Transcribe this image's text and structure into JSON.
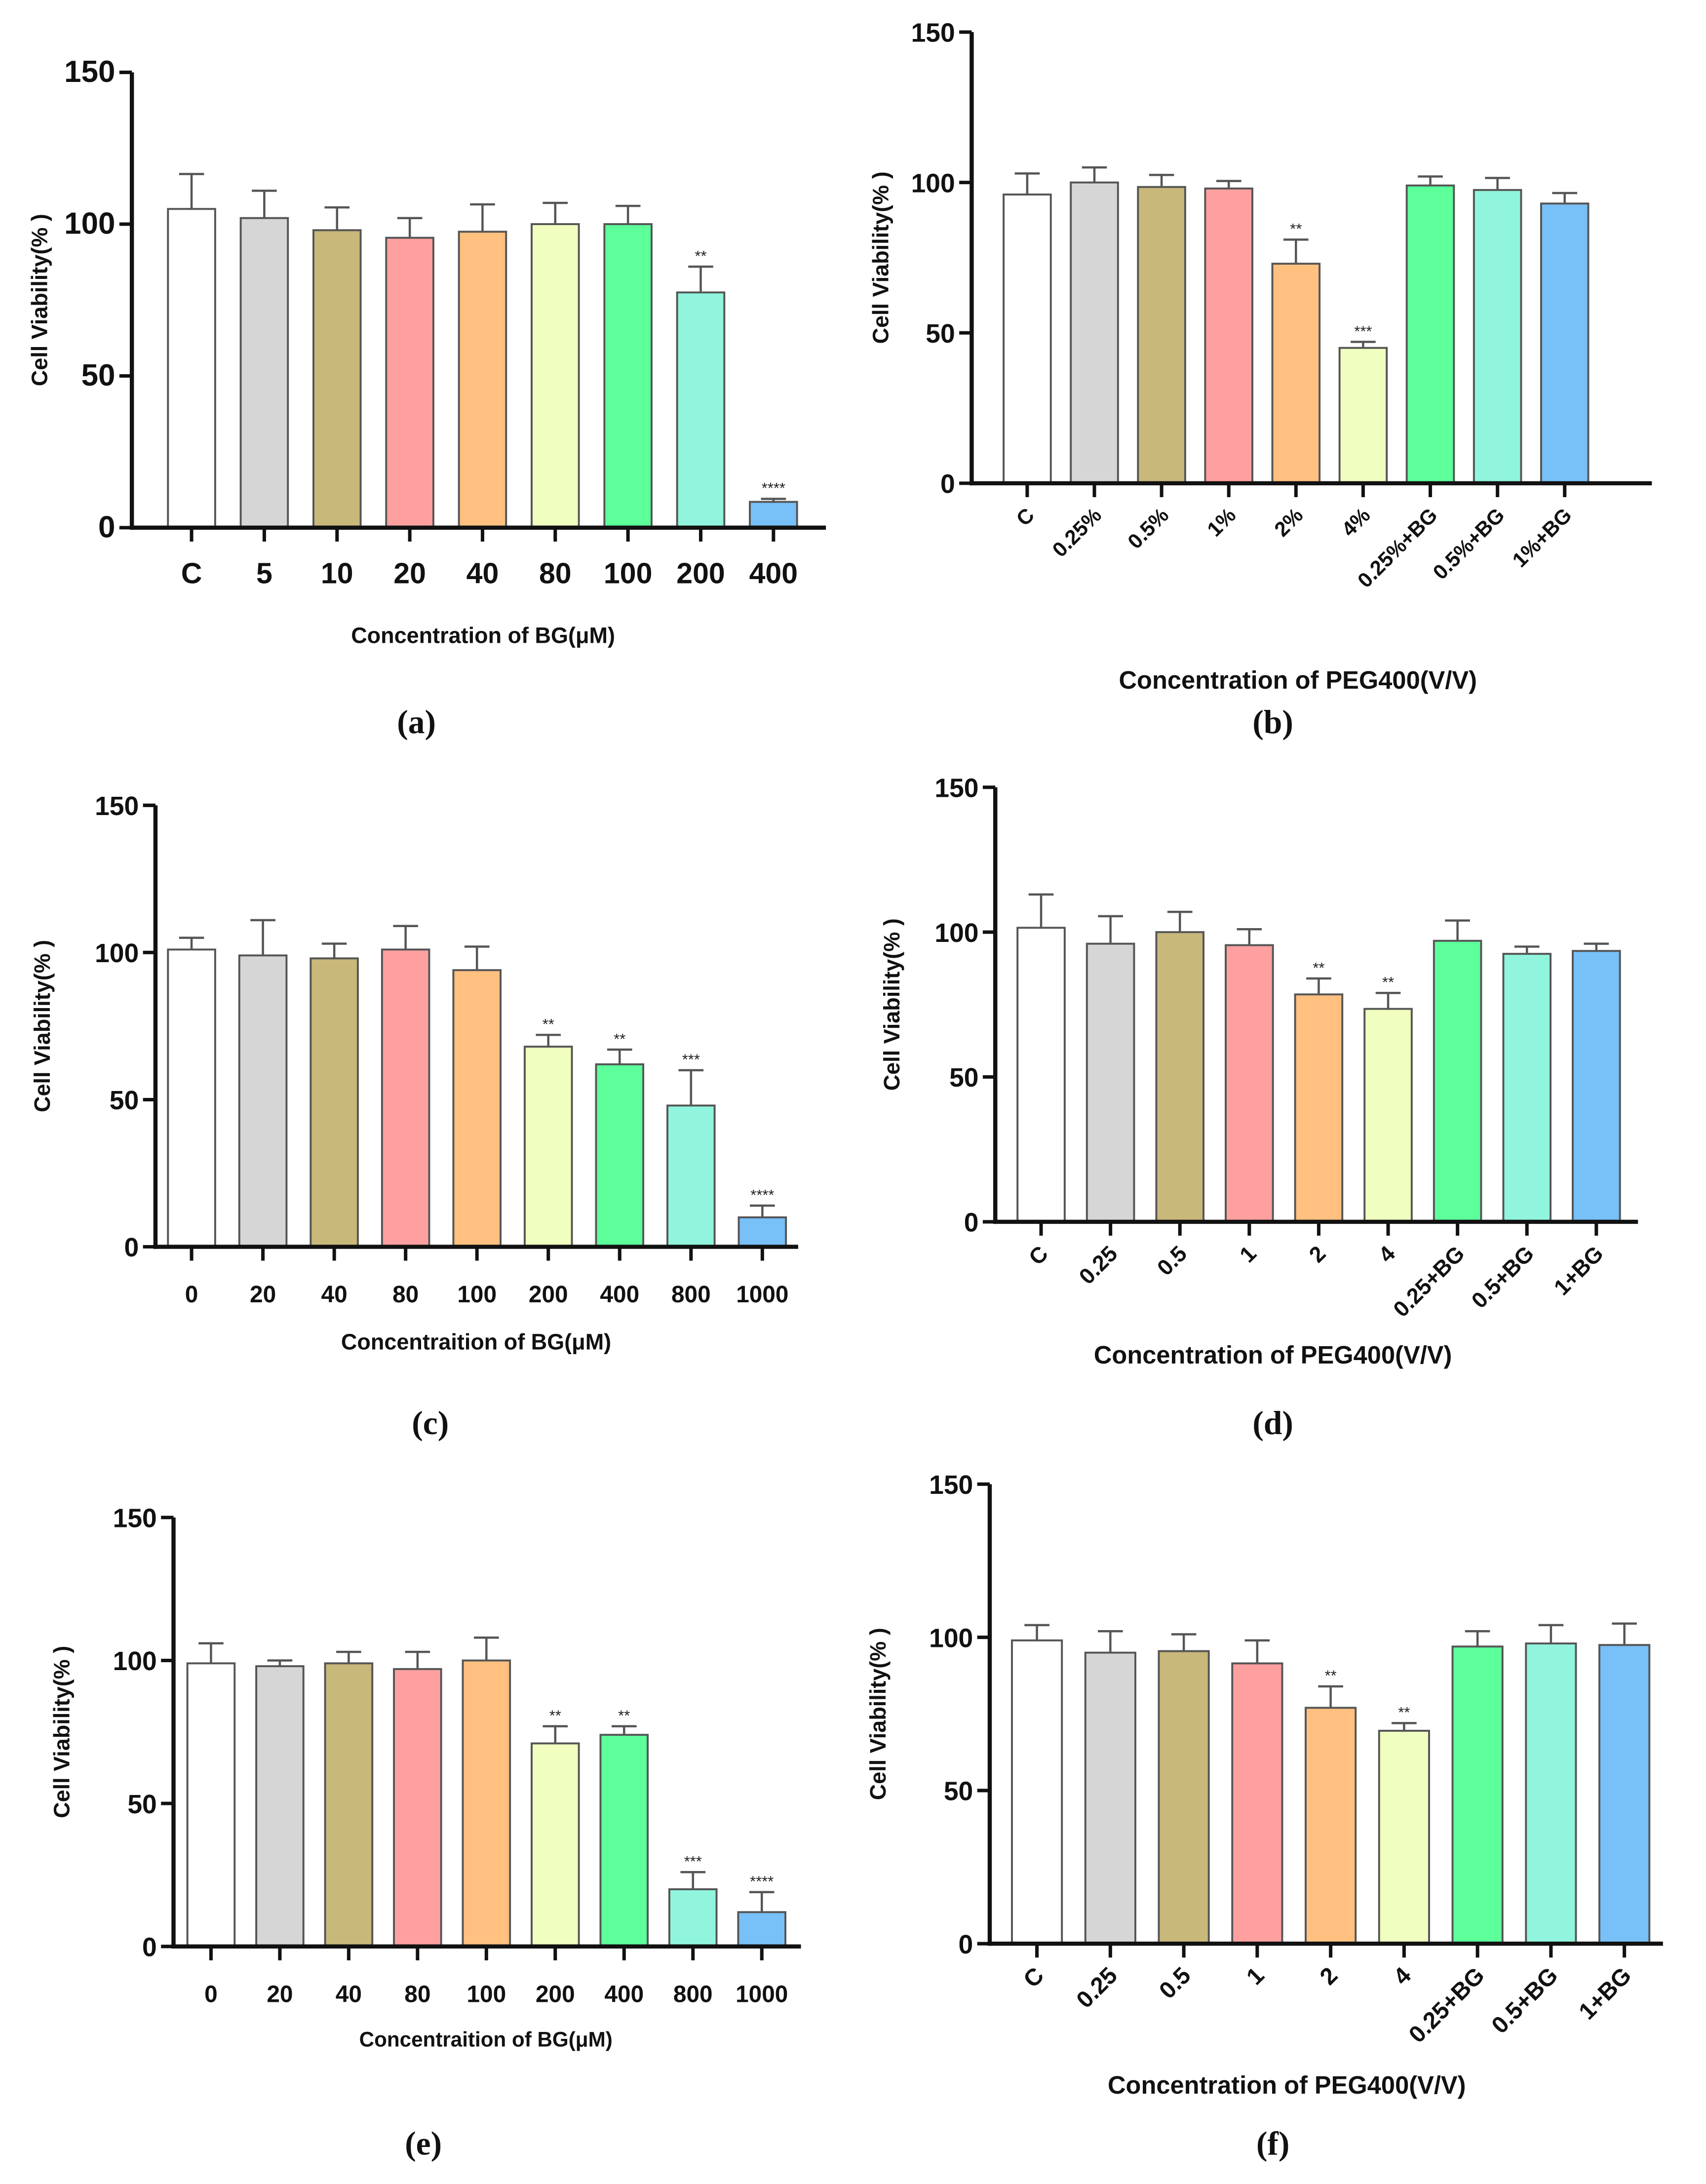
{
  "colors": [
    "#ffffff",
    "#d6d6d6",
    "#c8b87a",
    "#ffa0a0",
    "#ffc080",
    "#f0ffc0",
    "#5cff9a",
    "#90f5dc",
    "#78c0f8"
  ],
  "chart_data": [
    {
      "type": "bar",
      "panel": "(a)",
      "xlabel": "Concentration of BG(μM)",
      "ylabel": "Cell Viability(% )",
      "ylim": [
        0,
        150
      ],
      "yticks": [
        "0",
        "50",
        "100",
        "150"
      ],
      "categories": [
        "C",
        "5",
        "10",
        "20",
        "40",
        "80",
        "100",
        "200",
        "400"
      ],
      "values": [
        105,
        102,
        98,
        95.5,
        97.5,
        100,
        100,
        77.5,
        8.5
      ],
      "error": [
        11.5,
        9,
        7.5,
        6.5,
        9,
        7,
        6,
        8.5,
        1
      ],
      "significance": [
        "",
        "",
        "",
        "",
        "",
        "",
        "",
        "**",
        "****"
      ]
    },
    {
      "type": "bar",
      "panel": "(b)",
      "xlabel": "Concentration of PEG400(V/V)",
      "ylabel": "Cell Viability(% )",
      "ylim": [
        0,
        150
      ],
      "yticks": [
        "0",
        "50",
        "100",
        "150"
      ],
      "categories": [
        "C",
        "0.25%",
        "0.5%",
        "1%",
        "2%",
        "4%",
        "0.25%+BG",
        "0.5%+BG",
        "1%+BG"
      ],
      "values": [
        96,
        100,
        98.5,
        98,
        73,
        45,
        99,
        97.5,
        93
      ],
      "error": [
        7,
        5,
        4,
        2.5,
        8,
        2,
        3,
        4,
        3.5
      ],
      "significance": [
        "",
        "",
        "",
        "",
        "**",
        "***",
        "",
        "",
        ""
      ]
    },
    {
      "type": "bar",
      "panel": "(c)",
      "xlabel": "Concentraition of BG(μM)",
      "ylabel": "Cell Viability(% )",
      "ylim": [
        0,
        150
      ],
      "yticks": [
        "0",
        "50",
        "100",
        "150"
      ],
      "categories": [
        "0",
        "20",
        "40",
        "80",
        "100",
        "200",
        "400",
        "800",
        "1000"
      ],
      "values": [
        101,
        99,
        98,
        101,
        94,
        68,
        62,
        48,
        10
      ],
      "error": [
        4,
        12,
        5,
        8,
        8,
        4,
        5,
        12,
        4
      ],
      "significance": [
        "",
        "",
        "",
        "",
        "",
        "**",
        "**",
        "***",
        "****"
      ]
    },
    {
      "type": "bar",
      "panel": "(d)",
      "xlabel": "Concentration of PEG400(V/V)",
      "ylabel": "Cell Viability(% )",
      "ylim": [
        0,
        150
      ],
      "yticks": [
        "0",
        "50",
        "100",
        "150"
      ],
      "categories": [
        "C",
        "0.25",
        "0.5",
        "1",
        "2",
        "4",
        "0.25+BG",
        "0.5+BG",
        "1+BG"
      ],
      "values": [
        101.5,
        96,
        100,
        95.5,
        78.5,
        73.5,
        97,
        92.5,
        93.5
      ],
      "error": [
        11.5,
        9.5,
        7,
        5.5,
        5.5,
        5.5,
        7,
        2.5,
        2.5
      ],
      "significance": [
        "",
        "",
        "",
        "",
        "**",
        "**",
        "",
        "",
        ""
      ]
    },
    {
      "type": "bar",
      "panel": "(e)",
      "xlabel": "Concentraition of BG(μM)",
      "ylabel": "Cell Viability(% )",
      "ylim": [
        0,
        150
      ],
      "yticks": [
        "0",
        "50",
        "100",
        "150"
      ],
      "categories": [
        "0",
        "20",
        "40",
        "80",
        "100",
        "200",
        "400",
        "800",
        "1000"
      ],
      "values": [
        99,
        98,
        99,
        97,
        100,
        71,
        74,
        20,
        12
      ],
      "error": [
        7,
        2,
        4,
        6,
        8,
        6,
        3,
        6,
        7
      ],
      "significance": [
        "",
        "",
        "",
        "",
        "",
        "**",
        "**",
        "***",
        "****"
      ]
    },
    {
      "type": "bar",
      "panel": "(f)",
      "xlabel": "Concentration of PEG400(V/V)",
      "ylabel": "Cell Viability(% )",
      "ylim": [
        0,
        150
      ],
      "yticks": [
        "0",
        "50",
        "100",
        "150"
      ],
      "categories": [
        "C",
        "0.25",
        "0.5",
        "1",
        "2",
        "4",
        "0.25+BG",
        "0.5+BG",
        "1+BG"
      ],
      "values": [
        99,
        95,
        95.5,
        91.5,
        77,
        69.5,
        97,
        98,
        97.5
      ],
      "error": [
        5,
        7,
        5.5,
        7.5,
        7,
        2.5,
        5,
        6,
        7
      ],
      "significance": [
        "",
        "",
        "",
        "",
        "**",
        "**",
        "",
        "",
        ""
      ]
    }
  ]
}
